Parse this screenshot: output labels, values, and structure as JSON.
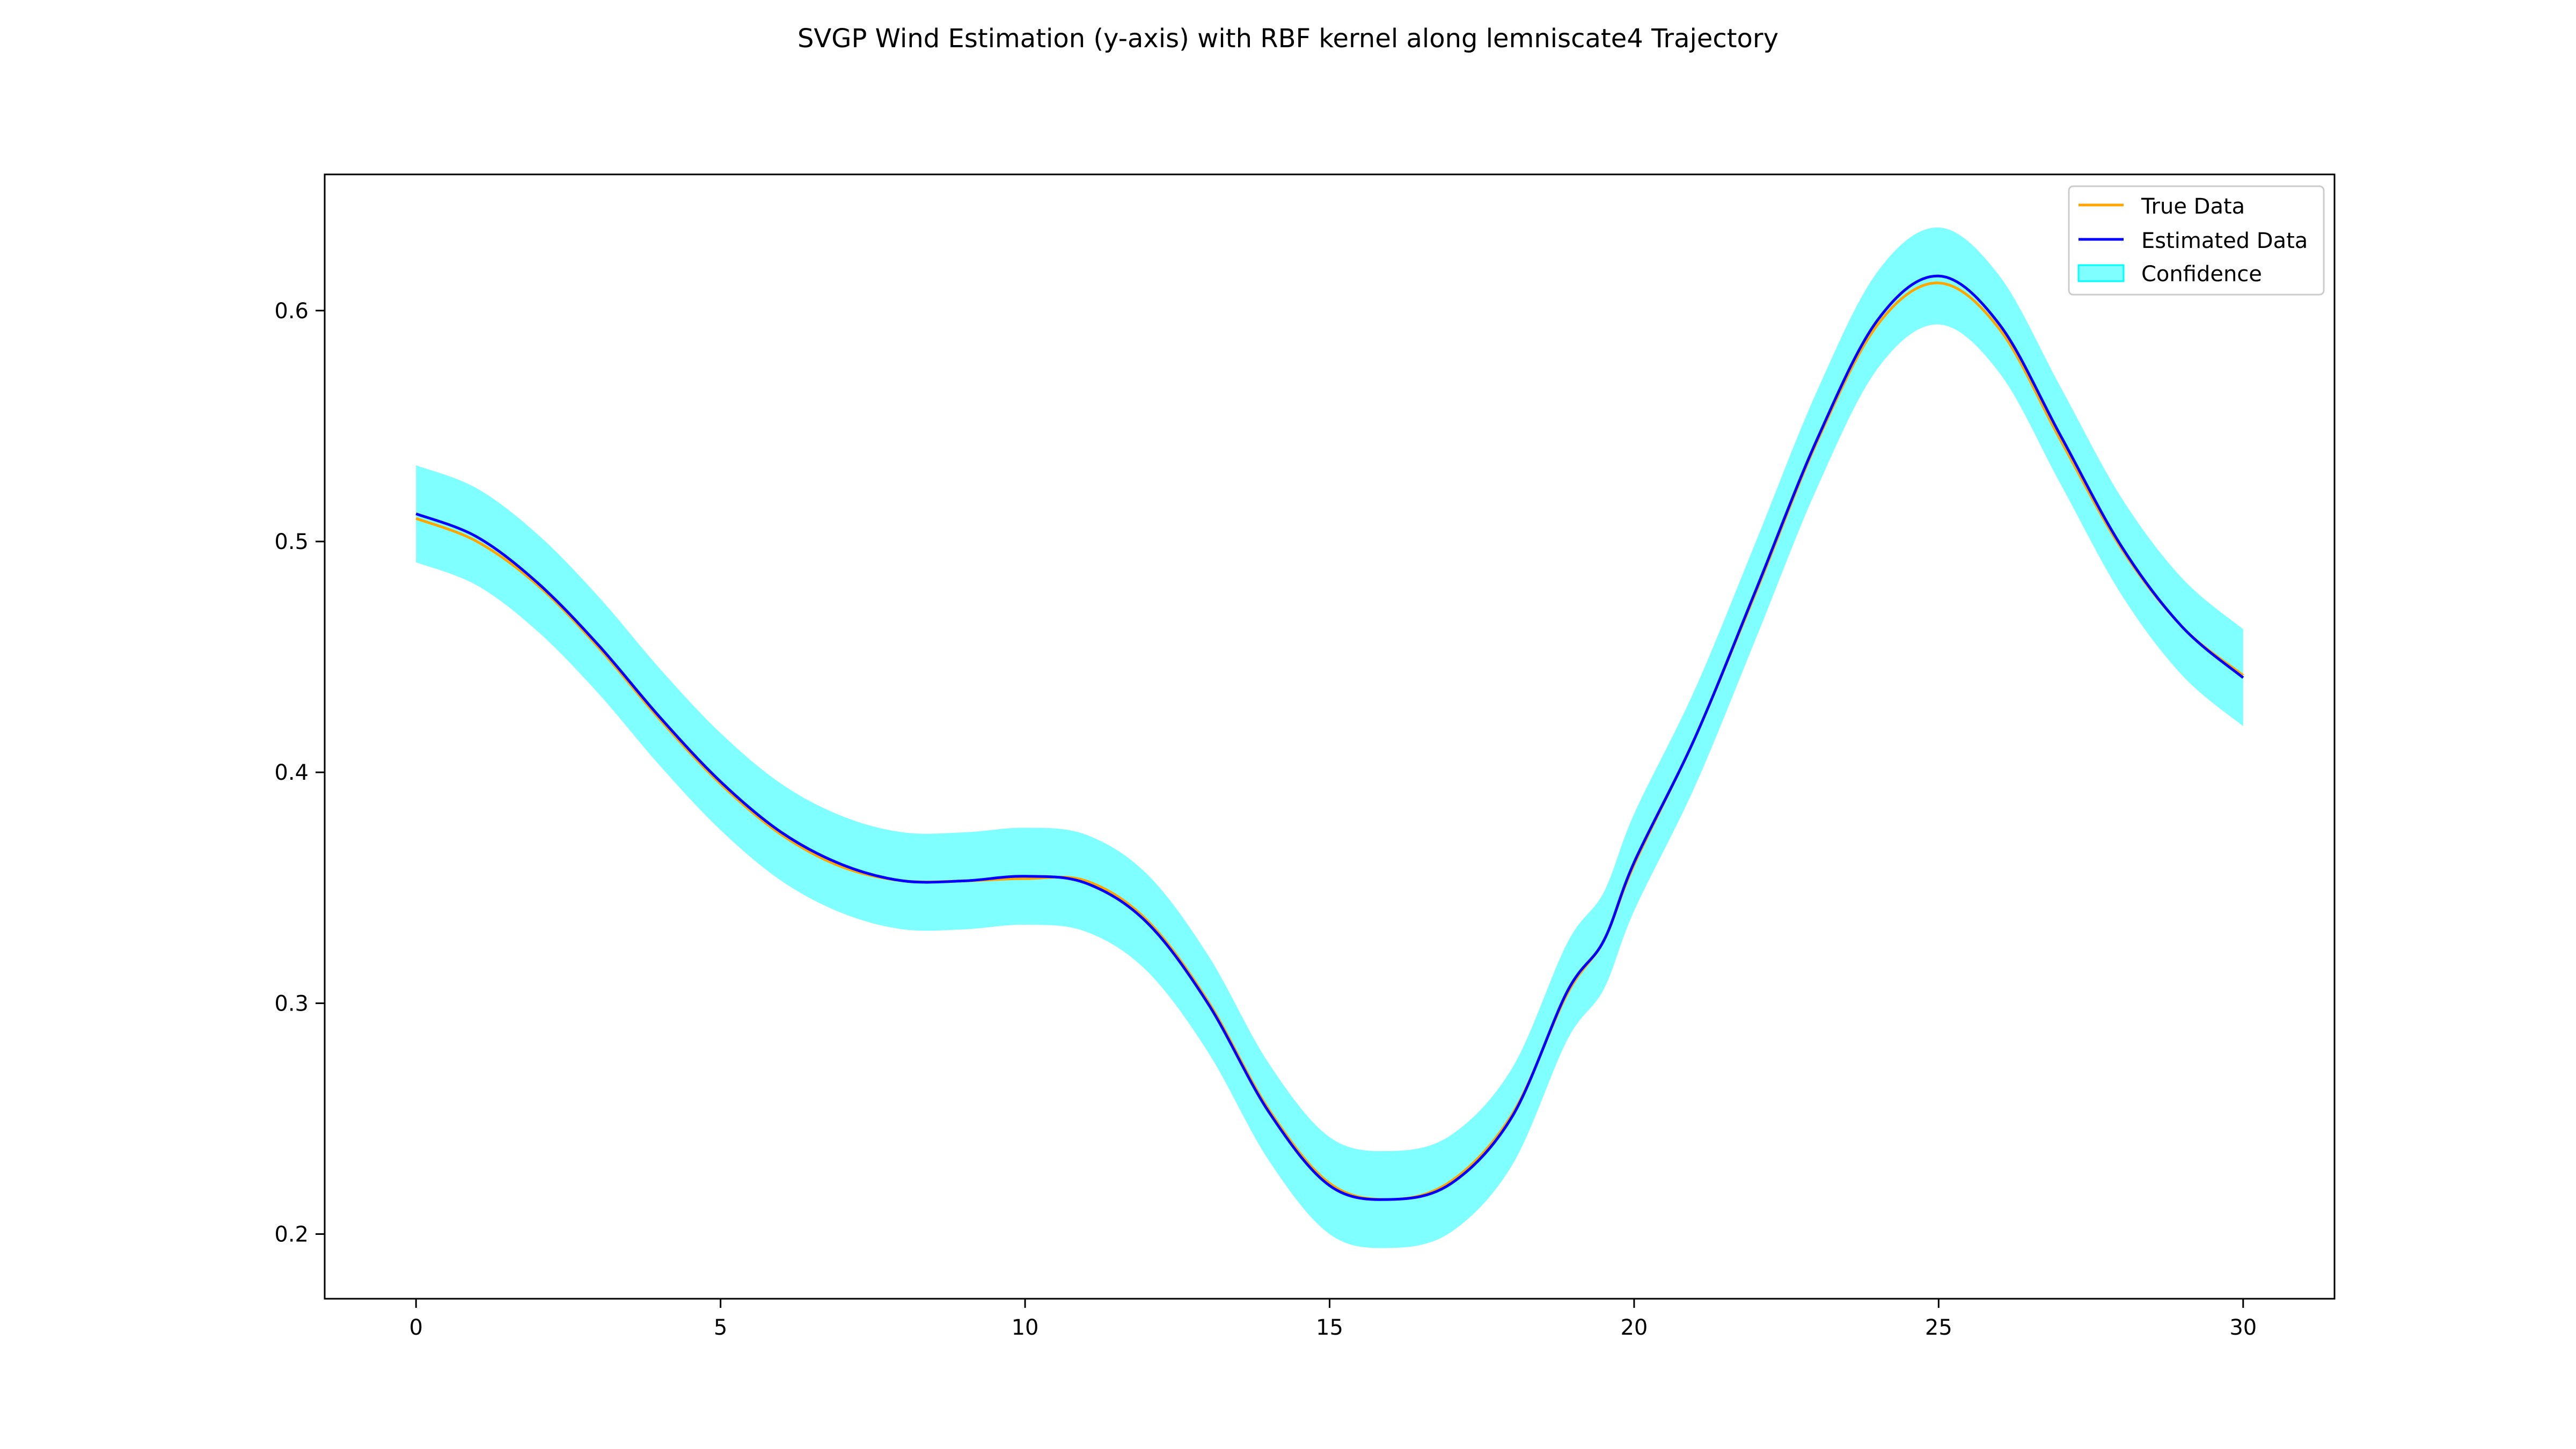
{
  "chart_data": {
    "type": "line",
    "title": "SVGP Wind Estimation (y-axis) with RBF kernel along lemniscate4 Trajectory",
    "xlabel": "",
    "ylabel": "",
    "xlim": [
      -1.5,
      31.5
    ],
    "ylim": [
      0.172,
      0.659
    ],
    "x_ticks": [
      0,
      5,
      10,
      15,
      20,
      25,
      30
    ],
    "y_ticks": [
      0.2,
      0.3,
      0.4,
      0.5,
      0.6
    ],
    "x_tick_labels": [
      "0",
      "5",
      "10",
      "15",
      "20",
      "25",
      "30"
    ],
    "y_tick_labels": [
      "0.2",
      "0.3",
      "0.4",
      "0.5",
      "0.6"
    ],
    "grid": false,
    "legend_position": "top-right",
    "confidence_halfwidth": 0.021,
    "x": [
      0,
      1,
      2,
      3,
      4,
      5,
      6,
      7,
      8,
      9,
      10,
      11,
      12,
      13,
      14,
      15,
      16,
      17,
      18,
      18.9,
      19.5,
      20,
      21,
      22,
      23,
      24,
      25,
      26,
      27,
      28,
      29,
      30
    ],
    "series": [
      {
        "name": "True Data",
        "color": "#FFA500",
        "values": [
          0.51,
          0.5,
          0.481,
          0.454,
          0.423,
          0.395,
          0.373,
          0.359,
          0.353,
          0.353,
          0.354,
          0.353,
          0.336,
          0.301,
          0.254,
          0.222,
          0.215,
          0.223,
          0.252,
          0.304,
          0.327,
          0.36,
          0.415,
          0.478,
          0.543,
          0.594,
          0.612,
          0.592,
          0.544,
          0.497,
          0.463,
          0.442
        ]
      },
      {
        "name": "Estimated Data",
        "color": "#0000FF",
        "values": [
          0.512,
          0.502,
          0.482,
          0.455,
          0.424,
          0.396,
          0.374,
          0.36,
          0.353,
          0.353,
          0.355,
          0.352,
          0.335,
          0.3,
          0.253,
          0.221,
          0.215,
          0.222,
          0.251,
          0.305,
          0.327,
          0.361,
          0.415,
          0.479,
          0.544,
          0.596,
          0.615,
          0.594,
          0.546,
          0.498,
          0.463,
          0.441
        ]
      }
    ],
    "legend": [
      {
        "label": "True Data",
        "kind": "line",
        "color": "#FFA500"
      },
      {
        "label": "Estimated Data",
        "kind": "line",
        "color": "#0000FF"
      },
      {
        "label": "Confidence",
        "kind": "patch",
        "color": "#00FFFF"
      }
    ]
  }
}
